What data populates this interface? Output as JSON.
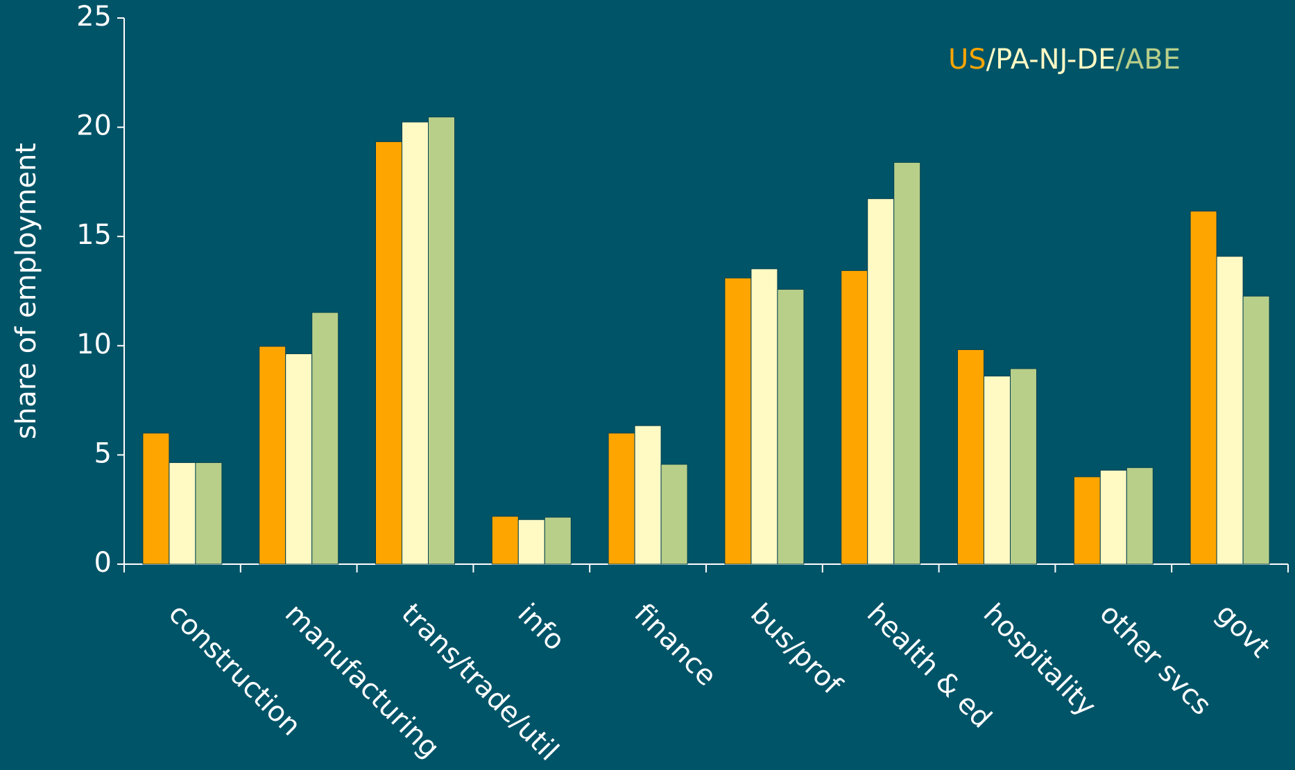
{
  "chart_data": {
    "type": "bar",
    "y_axis_label": "share of employment",
    "categories": [
      "construction",
      "manufacturing",
      "trans/trade/util",
      "info",
      "finance",
      "bus/prof",
      "health & ed",
      "hospitality",
      "other svcs",
      "govt"
    ],
    "series": [
      {
        "name": "US",
        "color": "#ffa500",
        "values": [
          6.0,
          9.97,
          19.34,
          2.19,
          6.0,
          13.1,
          13.44,
          9.82,
          4.0,
          16.16
        ]
      },
      {
        "name": "PA-NJ-DE",
        "color": "#fff9c4",
        "values": [
          4.65,
          9.63,
          20.24,
          2.04,
          6.34,
          13.52,
          16.73,
          8.61,
          4.3,
          14.09
        ]
      },
      {
        "name": "ABE",
        "color": "#b8cf8a",
        "values": [
          4.65,
          11.52,
          20.47,
          2.15,
          4.57,
          12.58,
          18.39,
          8.95,
          4.42,
          12.27
        ]
      }
    ],
    "legend_separator": "/",
    "ylim": [
      0,
      25
    ],
    "yticks": [
      0,
      5,
      10,
      15,
      20,
      25
    ],
    "grid": false
  }
}
